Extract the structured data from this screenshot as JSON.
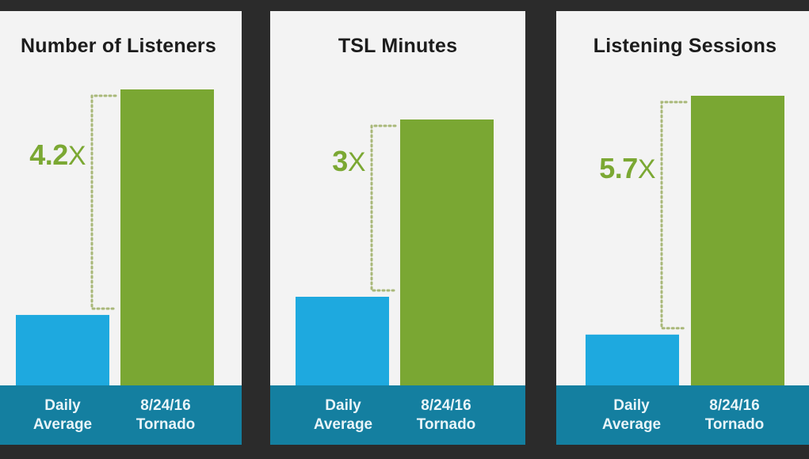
{
  "colors": {
    "baseline_bar": "#1ea9df",
    "event_bar": "#7aa733",
    "footer": "#147fa0",
    "multiplier_text": "#7ba833",
    "connector": "#a9b879"
  },
  "chart_data": [
    {
      "type": "bar",
      "title": "Number of Listeners",
      "categories": [
        "Daily Average",
        "8/24/16 Tornado"
      ],
      "values": [
        1,
        4.2
      ],
      "ratio_label": "4.2",
      "ratio_suffix": "X"
    },
    {
      "type": "bar",
      "title": "TSL Minutes",
      "categories": [
        "Daily Average",
        "8/24/16 Tornado"
      ],
      "values": [
        1,
        3
      ],
      "ratio_label": "3",
      "ratio_suffix": "X"
    },
    {
      "type": "bar",
      "title": "Listening Sessions",
      "categories": [
        "Daily Average",
        "8/24/16 Tornado"
      ],
      "values": [
        1,
        5.7
      ],
      "ratio_label": "5.7",
      "ratio_suffix": "X"
    }
  ]
}
